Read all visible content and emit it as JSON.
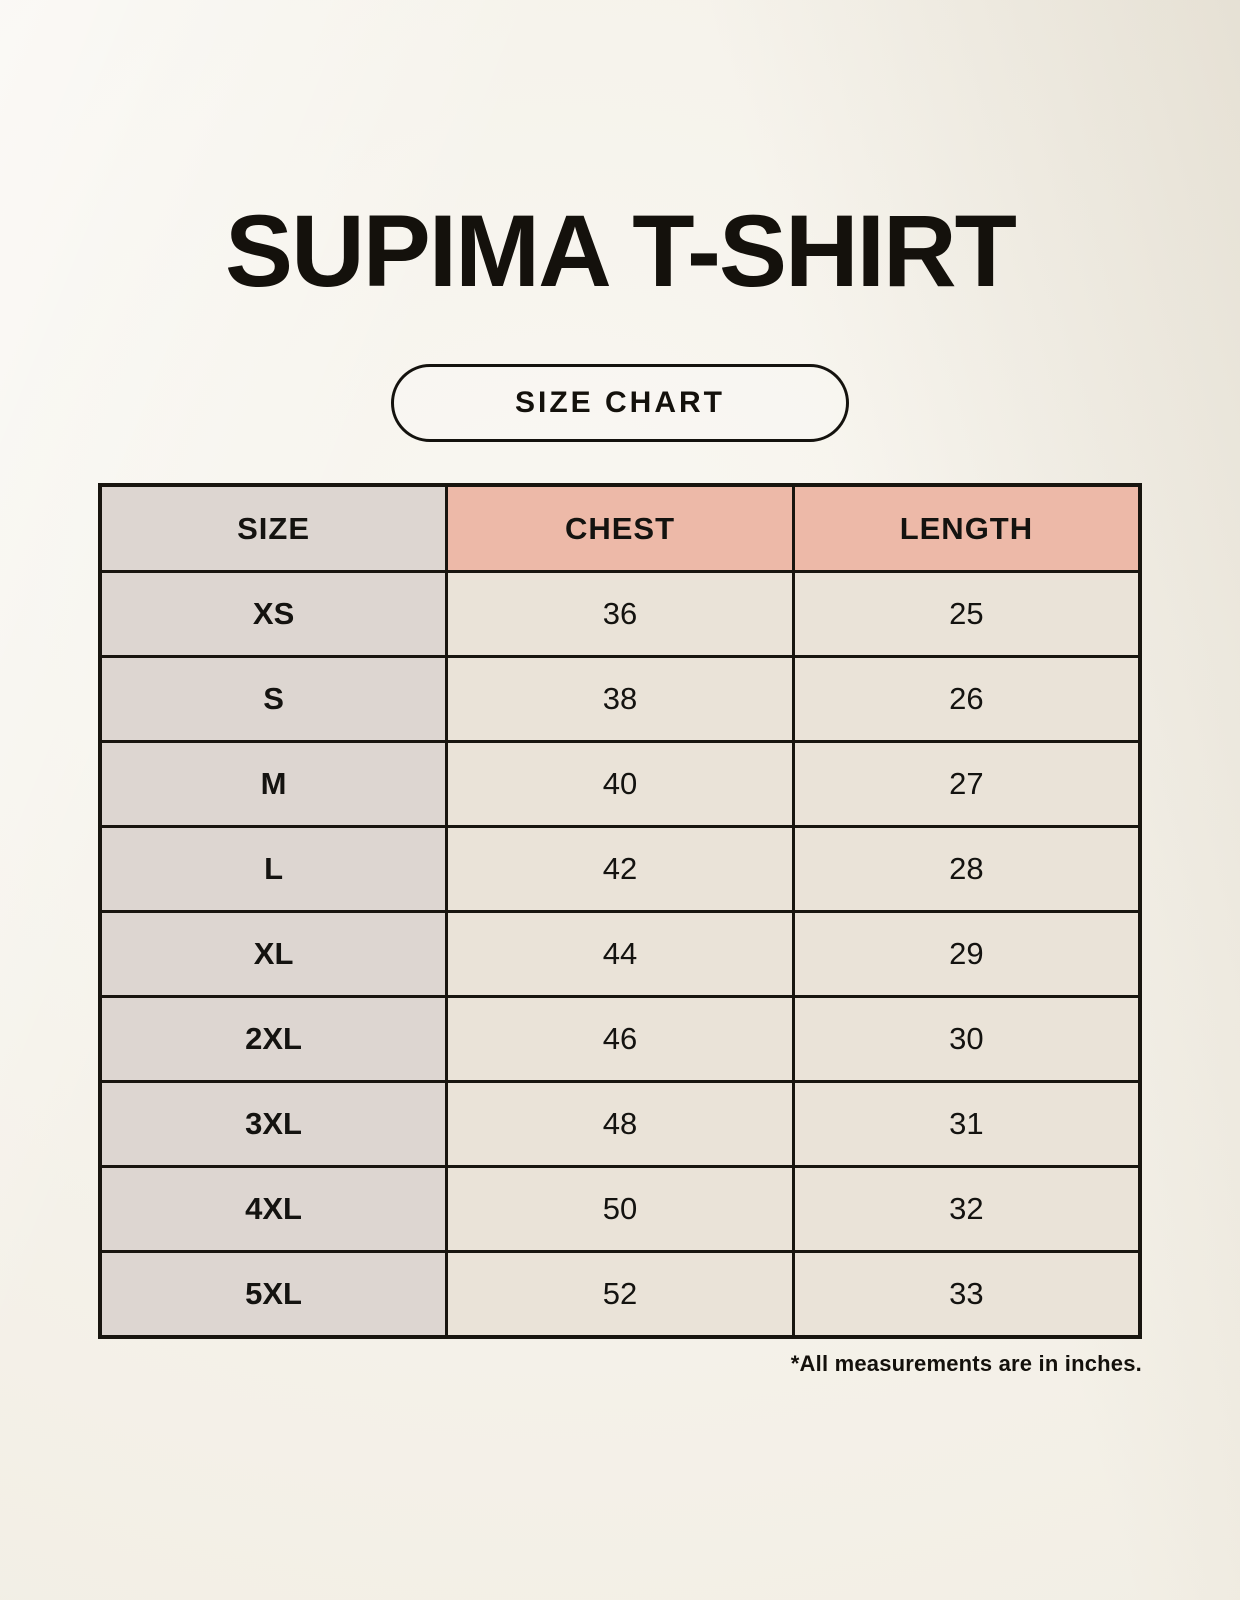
{
  "header": {
    "title": "SUPIMA T-SHIRT",
    "badge_label": "SIZE CHART"
  },
  "chart_data": {
    "type": "table",
    "title": "SUPIMA T-SHIRT",
    "subtitle": "SIZE CHART",
    "columns": [
      "SIZE",
      "CHEST",
      "LENGTH"
    ],
    "rows": [
      [
        "XS",
        "36",
        "25"
      ],
      [
        "S",
        "38",
        "26"
      ],
      [
        "M",
        "40",
        "27"
      ],
      [
        "L",
        "42",
        "28"
      ],
      [
        "XL",
        "44",
        "29"
      ],
      [
        "2XL",
        "46",
        "30"
      ],
      [
        "3XL",
        "48",
        "31"
      ],
      [
        "4XL",
        "50",
        "32"
      ],
      [
        "5XL",
        "52",
        "33"
      ]
    ],
    "annotation": "*All measurements are in inches."
  },
  "footer": {
    "note": "*All measurements are in inches."
  },
  "colors": {
    "background": "#f6f3eb",
    "size_column_bg": "#ddd6d1",
    "measure_header_bg": "#edb9a8",
    "data_cell_bg": "#eae3d8",
    "border": "#18150f",
    "text": "#141310"
  }
}
